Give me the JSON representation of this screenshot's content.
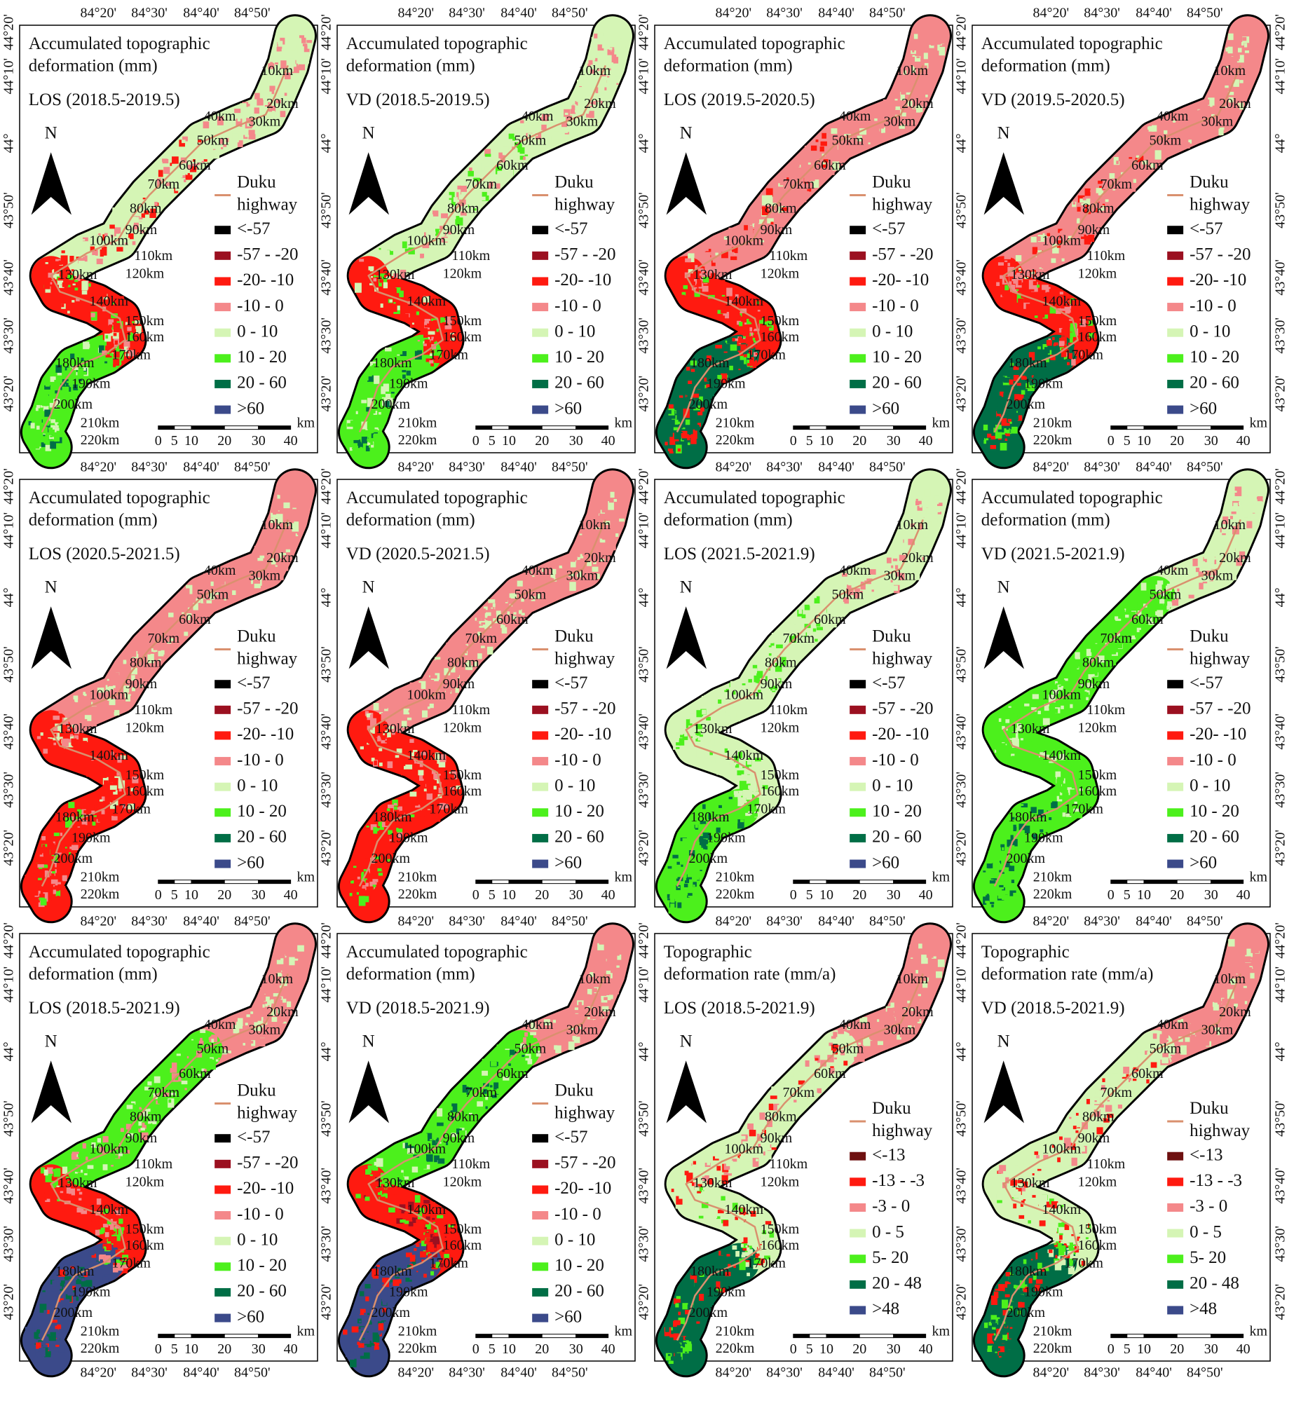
{
  "figure": {
    "longitude_labels": [
      "84°20'",
      "84°30'",
      "84°40'",
      "84°50'"
    ],
    "latitude_labels": [
      "44°20'",
      "44°10'",
      "44°",
      "43°50'",
      "43°40'",
      "43°30'",
      "43°20'"
    ],
    "km_markers": [
      "10km",
      "20km",
      "30km",
      "40km",
      "50km",
      "60km",
      "70km",
      "80km",
      "90km",
      "100km",
      "110km",
      "120km",
      "130km",
      "140km",
      "150km",
      "160km",
      "170km",
      "180km",
      "190km",
      "200km",
      "210km",
      "220km"
    ],
    "north": "N",
    "highway_legend": [
      "Duku",
      "highway"
    ],
    "highway_color": "#d9906e",
    "scale_labels": [
      "0",
      "5",
      "10",
      "20",
      "30",
      "40"
    ],
    "scale_unit": "km",
    "panels": [
      {
        "title": [
          "Accumulated topographic",
          "deformation (mm)"
        ],
        "period": "LOS (2018.5-2019.5)",
        "legend": [
          {
            "label": "<-57",
            "color": "#000000"
          },
          {
            "label": "-57 - -20",
            "color": "#9b1020"
          },
          {
            "label": "-20- -10",
            "color": "#ff1a10"
          },
          {
            "label": "-10 - 0",
            "color": "#f4888a"
          },
          {
            "label": "0 - 10",
            "color": "#d5f5b5"
          },
          {
            "label": "10 - 20",
            "color": "#4cf01c"
          },
          {
            "label": "20 - 60",
            "color": "#006e46"
          },
          {
            "label": ">60",
            "color": "#3b4a8a"
          }
        ],
        "map_colors": [
          [
            "#d5f5b5",
            "#f4888a"
          ],
          [
            "#d5f5b5",
            "#f4888a",
            "#ff1a10"
          ],
          [
            "#ff1a10",
            "#f4888a",
            "#d5f5b5",
            "#4cf01c"
          ],
          [
            "#4cf01c",
            "#006e46",
            "#d5f5b5"
          ]
        ]
      },
      {
        "title": [
          "Accumulated topographic",
          "deformation (mm)"
        ],
        "period": "VD (2018.5-2019.5)",
        "legend": [
          {
            "label": "<-57",
            "color": "#000000"
          },
          {
            "label": "-57 - -20",
            "color": "#9b1020"
          },
          {
            "label": "-20- -10",
            "color": "#ff1a10"
          },
          {
            "label": "-10 - 0",
            "color": "#f4888a"
          },
          {
            "label": "0 - 10",
            "color": "#d5f5b5"
          },
          {
            "label": "10 - 20",
            "color": "#4cf01c"
          },
          {
            "label": "20 - 60",
            "color": "#006e46"
          },
          {
            "label": ">60",
            "color": "#3b4a8a"
          }
        ],
        "map_colors": [
          [
            "#d5f5b5",
            "#f4888a"
          ],
          [
            "#d5f5b5",
            "#f4888a",
            "#4cf01c"
          ],
          [
            "#ff1a10",
            "#f4888a",
            "#d5f5b5",
            "#4cf01c"
          ],
          [
            "#4cf01c",
            "#006e46",
            "#d5f5b5"
          ]
        ]
      },
      {
        "title": [
          "Accumulated topographic",
          "deformation (mm)"
        ],
        "period": "LOS (2019.5-2020.5)",
        "legend": [
          {
            "label": "<-57",
            "color": "#000000"
          },
          {
            "label": "-57 - -20",
            "color": "#9b1020"
          },
          {
            "label": "-20- -10",
            "color": "#ff1a10"
          },
          {
            "label": "-10 - 0",
            "color": "#f4888a"
          },
          {
            "label": "0 - 10",
            "color": "#d5f5b5"
          },
          {
            "label": "10 - 20",
            "color": "#4cf01c"
          },
          {
            "label": "20 - 60",
            "color": "#006e46"
          },
          {
            "label": ">60",
            "color": "#3b4a8a"
          }
        ],
        "map_colors": [
          [
            "#f4888a",
            "#d5f5b5"
          ],
          [
            "#f4888a",
            "#ff1a10",
            "#d5f5b5"
          ],
          [
            "#ff1a10",
            "#f4888a",
            "#4cf01c"
          ],
          [
            "#006e46",
            "#4cf01c",
            "#ff1a10"
          ]
        ]
      },
      {
        "title": [
          "Accumulated topographic",
          "deformation (mm)"
        ],
        "period": "VD (2019.5-2020.5)",
        "legend": [
          {
            "label": "<-57",
            "color": "#000000"
          },
          {
            "label": "-57 - -20",
            "color": "#9b1020"
          },
          {
            "label": "-20- -10",
            "color": "#ff1a10"
          },
          {
            "label": "-10 - 0",
            "color": "#f4888a"
          },
          {
            "label": "0 - 10",
            "color": "#d5f5b5"
          },
          {
            "label": "10 - 20",
            "color": "#4cf01c"
          },
          {
            "label": "20 - 60",
            "color": "#006e46"
          },
          {
            "label": ">60",
            "color": "#3b4a8a"
          }
        ],
        "map_colors": [
          [
            "#f4888a",
            "#d5f5b5"
          ],
          [
            "#f4888a",
            "#ff1a10",
            "#d5f5b5"
          ],
          [
            "#ff1a10",
            "#f4888a",
            "#4cf01c"
          ],
          [
            "#006e46",
            "#4cf01c",
            "#ff1a10"
          ]
        ]
      },
      {
        "title": [
          "Accumulated topographic",
          "deformation (mm)"
        ],
        "period": "LOS (2020.5-2021.5)",
        "legend": [
          {
            "label": "<-57",
            "color": "#000000"
          },
          {
            "label": "-57 - -20",
            "color": "#9b1020"
          },
          {
            "label": "-20- -10",
            "color": "#ff1a10"
          },
          {
            "label": "-10 - 0",
            "color": "#f4888a"
          },
          {
            "label": "0 - 10",
            "color": "#d5f5b5"
          },
          {
            "label": "10 - 20",
            "color": "#4cf01c"
          },
          {
            "label": "20 - 60",
            "color": "#006e46"
          },
          {
            "label": ">60",
            "color": "#3b4a8a"
          }
        ],
        "map_colors": [
          [
            "#f4888a",
            "#d5f5b5"
          ],
          [
            "#f4888a",
            "#d5f5b5"
          ],
          [
            "#ff1a10",
            "#f4888a",
            "#d5f5b5"
          ],
          [
            "#ff1a10",
            "#f4888a",
            "#4cf01c"
          ]
        ]
      },
      {
        "title": [
          "Accumulated topographic",
          "deformation (mm)"
        ],
        "period": "VD (2020.5-2021.5)",
        "legend": [
          {
            "label": "<-57",
            "color": "#000000"
          },
          {
            "label": "-57 - -20",
            "color": "#9b1020"
          },
          {
            "label": "-20- -10",
            "color": "#ff1a10"
          },
          {
            "label": "-10 - 0",
            "color": "#f4888a"
          },
          {
            "label": "0 - 10",
            "color": "#d5f5b5"
          },
          {
            "label": "10 - 20",
            "color": "#4cf01c"
          },
          {
            "label": "20 - 60",
            "color": "#006e46"
          },
          {
            "label": ">60",
            "color": "#3b4a8a"
          }
        ],
        "map_colors": [
          [
            "#f4888a",
            "#d5f5b5"
          ],
          [
            "#f4888a",
            "#d5f5b5"
          ],
          [
            "#ff1a10",
            "#f4888a",
            "#d5f5b5"
          ],
          [
            "#ff1a10",
            "#f4888a",
            "#4cf01c"
          ]
        ]
      },
      {
        "title": [
          "Accumulated topographic",
          "deformation (mm)"
        ],
        "period": "LOS (2021.5-2021.9)",
        "legend": [
          {
            "label": "<-57",
            "color": "#000000"
          },
          {
            "label": "-57 - -20",
            "color": "#9b1020"
          },
          {
            "label": "-20- -10",
            "color": "#ff1a10"
          },
          {
            "label": "-10 - 0",
            "color": "#f4888a"
          },
          {
            "label": "0 - 10",
            "color": "#d5f5b5"
          },
          {
            "label": "10 - 20",
            "color": "#4cf01c"
          },
          {
            "label": "20 - 60",
            "color": "#006e46"
          },
          {
            "label": ">60",
            "color": "#3b4a8a"
          }
        ],
        "map_colors": [
          [
            "#d5f5b5",
            "#f4888a"
          ],
          [
            "#d5f5b5",
            "#4cf01c"
          ],
          [
            "#d5f5b5",
            "#4cf01c"
          ],
          [
            "#4cf01c",
            "#006e46"
          ]
        ]
      },
      {
        "title": [
          "Accumulated topographic",
          "deformation (mm)"
        ],
        "period": "VD (2021.5-2021.9)",
        "legend": [
          {
            "label": "<-57",
            "color": "#000000"
          },
          {
            "label": "-57 - -20",
            "color": "#9b1020"
          },
          {
            "label": "-20- -10",
            "color": "#ff1a10"
          },
          {
            "label": "-10 - 0",
            "color": "#f4888a"
          },
          {
            "label": "0 - 10",
            "color": "#d5f5b5"
          },
          {
            "label": "10 - 20",
            "color": "#4cf01c"
          },
          {
            "label": "20 - 60",
            "color": "#006e46"
          },
          {
            "label": ">60",
            "color": "#3b4a8a"
          }
        ],
        "map_colors": [
          [
            "#d5f5b5",
            "#f4888a"
          ],
          [
            "#4cf01c",
            "#d5f5b5"
          ],
          [
            "#4cf01c",
            "#d5f5b5"
          ],
          [
            "#4cf01c",
            "#006e46"
          ]
        ]
      },
      {
        "title": [
          "Accumulated topographic",
          "deformation (mm)"
        ],
        "period": "LOS (2018.5-2021.9)",
        "legend": [
          {
            "label": "<-57",
            "color": "#000000"
          },
          {
            "label": "-57 - -20",
            "color": "#9b1020"
          },
          {
            "label": "-20- -10",
            "color": "#ff1a10"
          },
          {
            "label": "-10 - 0",
            "color": "#f4888a"
          },
          {
            "label": "0 - 10",
            "color": "#d5f5b5"
          },
          {
            "label": "10 - 20",
            "color": "#4cf01c"
          },
          {
            "label": "20 - 60",
            "color": "#006e46"
          },
          {
            "label": ">60",
            "color": "#3b4a8a"
          }
        ],
        "map_colors": [
          [
            "#f4888a",
            "#d5f5b5"
          ],
          [
            "#4cf01c",
            "#d5f5b5",
            "#f4888a"
          ],
          [
            "#ff1a10",
            "#f4888a",
            "#4cf01c"
          ],
          [
            "#3b4a8a",
            "#006e46",
            "#ff1a10"
          ]
        ]
      },
      {
        "title": [
          "Accumulated topographic",
          "deformation (mm)"
        ],
        "period": "VD (2018.5-2021.9)",
        "legend": [
          {
            "label": "<-57",
            "color": "#000000"
          },
          {
            "label": "-57 - -20",
            "color": "#9b1020"
          },
          {
            "label": "-20- -10",
            "color": "#ff1a10"
          },
          {
            "label": "-10 - 0",
            "color": "#f4888a"
          },
          {
            "label": "0 - 10",
            "color": "#d5f5b5"
          },
          {
            "label": "10 - 20",
            "color": "#4cf01c"
          },
          {
            "label": "20 - 60",
            "color": "#006e46"
          },
          {
            "label": ">60",
            "color": "#3b4a8a"
          }
        ],
        "map_colors": [
          [
            "#f4888a",
            "#d5f5b5"
          ],
          [
            "#4cf01c",
            "#006e46",
            "#d5f5b5"
          ],
          [
            "#ff1a10",
            "#9b1020",
            "#4cf01c"
          ],
          [
            "#3b4a8a",
            "#006e46",
            "#ff1a10"
          ]
        ]
      },
      {
        "title": [
          "Topographic",
          "deformation rate (mm/a)"
        ],
        "period": "LOS (2018.5-2021.9)",
        "legend": [
          {
            "label": "<-13",
            "color": "#6e1010"
          },
          {
            "label": "-13 - -3",
            "color": "#ff1a10"
          },
          {
            "label": "-3 - 0",
            "color": "#f4888a"
          },
          {
            "label": "0 - 5",
            "color": "#d5f5b5"
          },
          {
            "label": "5- 20",
            "color": "#4cf01c"
          },
          {
            "label": "20 - 48",
            "color": "#006e46"
          },
          {
            "label": ">48",
            "color": "#3b4a8a"
          }
        ],
        "map_colors": [
          [
            "#f4888a",
            "#d5f5b5"
          ],
          [
            "#d5f5b5",
            "#f4888a",
            "#ff1a10"
          ],
          [
            "#d5f5b5",
            "#ff1a10",
            "#4cf01c"
          ],
          [
            "#006e46",
            "#4cf01c",
            "#ff1a10"
          ]
        ]
      },
      {
        "title": [
          "Topographic",
          "deformation rate (mm/a)"
        ],
        "period": "VD (2018.5-2021.9)",
        "legend": [
          {
            "label": "<-13",
            "color": "#6e1010"
          },
          {
            "label": "-13 - -3",
            "color": "#ff1a10"
          },
          {
            "label": "-3 - 0",
            "color": "#f4888a"
          },
          {
            "label": "0 - 5",
            "color": "#d5f5b5"
          },
          {
            "label": "5- 20",
            "color": "#4cf01c"
          },
          {
            "label": "20 - 48",
            "color": "#006e46"
          },
          {
            "label": ">48",
            "color": "#3b4a8a"
          }
        ],
        "map_colors": [
          [
            "#f4888a",
            "#d5f5b5"
          ],
          [
            "#d5f5b5",
            "#f4888a",
            "#ff1a10"
          ],
          [
            "#d5f5b5",
            "#ff1a10",
            "#4cf01c"
          ],
          [
            "#006e46",
            "#4cf01c",
            "#ff1a10"
          ]
        ]
      }
    ]
  }
}
